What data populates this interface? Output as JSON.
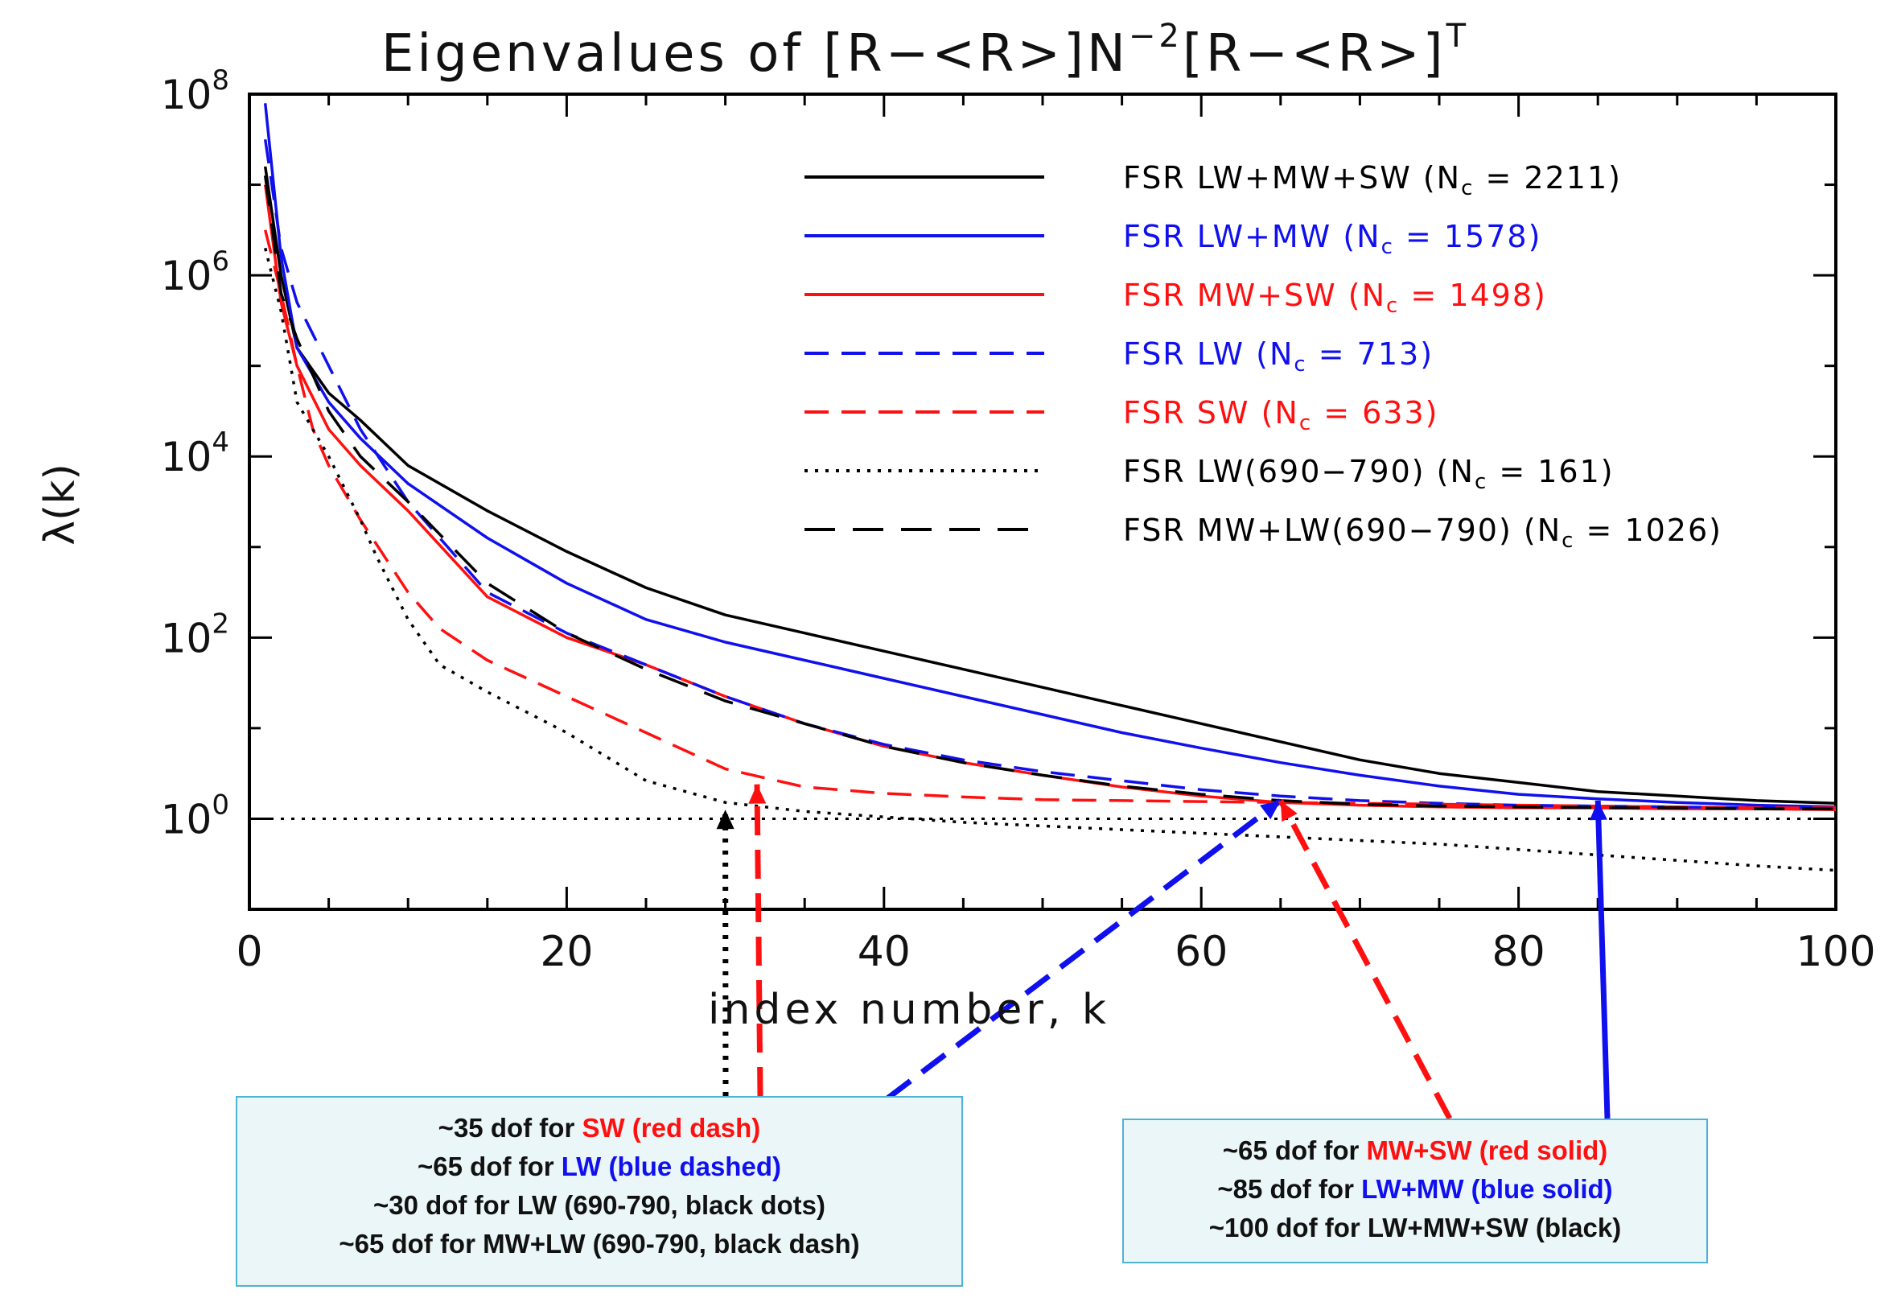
{
  "chart_data": {
    "type": "line",
    "title": "Eigenvalues of [R−<R>]N⁻²[R−<R>]ᵀ",
    "title_parts": {
      "main": "Eigenvalues of [R−<R>]N",
      "sup1": "−2",
      "mid": "[R−<R>]",
      "sup2": "T"
    },
    "xlabel": "index number, k",
    "ylabel": "λ(k)",
    "xlim": [
      0,
      100
    ],
    "ylim_log10": [
      -1,
      8
    ],
    "y_scale": "log",
    "x_ticks": [
      "0",
      "20",
      "40",
      "60",
      "80",
      "100"
    ],
    "y_ticks": [
      {
        "base": "10",
        "exp": "8"
      },
      {
        "base": "10",
        "exp": "6"
      },
      {
        "base": "10",
        "exp": "4"
      },
      {
        "base": "10",
        "exp": "2"
      },
      {
        "base": "10",
        "exp": "0"
      }
    ],
    "legend_position": "top-right",
    "reference_line": {
      "y": 1,
      "style": "dotted",
      "color": "#000000"
    },
    "series": [
      {
        "name": "FSR LW+MW+SW (Nᴄ = 2211)",
        "label_main": "FSR LW+MW+SW (N",
        "label_sub": "c",
        "label_tail": " = 2211)",
        "color": "#000000",
        "dash": "solid",
        "x": [
          1,
          2,
          3,
          5,
          7,
          10,
          15,
          20,
          25,
          30,
          35,
          40,
          45,
          50,
          55,
          60,
          65,
          70,
          75,
          80,
          85,
          90,
          95,
          100
        ],
        "log10y": [
          7.2,
          6.0,
          5.2,
          4.7,
          4.4,
          3.9,
          3.4,
          2.95,
          2.55,
          2.25,
          2.05,
          1.85,
          1.65,
          1.45,
          1.25,
          1.05,
          0.85,
          0.65,
          0.5,
          0.4,
          0.3,
          0.25,
          0.2,
          0.17
        ]
      },
      {
        "name": "FSR LW+MW (Nᴄ = 1578)",
        "label_main": "FSR LW+MW (N",
        "label_sub": "c",
        "label_tail": " = 1578)",
        "color": "#1010ee",
        "dash": "solid",
        "x": [
          1,
          2,
          3,
          5,
          7,
          10,
          15,
          20,
          25,
          30,
          35,
          40,
          45,
          50,
          55,
          60,
          65,
          70,
          75,
          80,
          85,
          90,
          95,
          100
        ],
        "log10y": [
          7.9,
          6.2,
          5.2,
          4.6,
          4.2,
          3.7,
          3.1,
          2.6,
          2.2,
          1.95,
          1.75,
          1.55,
          1.35,
          1.15,
          0.95,
          0.78,
          0.62,
          0.48,
          0.36,
          0.27,
          0.22,
          0.18,
          0.15,
          0.13
        ]
      },
      {
        "name": "FSR MW+SW (Nᴄ = 1498)",
        "label_main": "FSR MW+SW (N",
        "label_sub": "c",
        "label_tail": " = 1498)",
        "color": "#ff1010",
        "dash": "solid",
        "x": [
          1,
          2,
          3,
          5,
          7,
          10,
          15,
          20,
          25,
          30,
          35,
          40,
          45,
          50,
          55,
          60,
          65,
          70,
          75,
          80,
          85,
          90,
          95,
          100
        ],
        "log10y": [
          7.0,
          5.7,
          5.0,
          4.3,
          3.9,
          3.4,
          2.45,
          2.0,
          1.7,
          1.35,
          1.05,
          0.8,
          0.62,
          0.48,
          0.35,
          0.25,
          0.18,
          0.15,
          0.13,
          0.12,
          0.12,
          0.11,
          0.11,
          0.1
        ]
      },
      {
        "name": "FSR LW (Nᴄ = 713)",
        "label_main": "FSR LW (N",
        "label_sub": "c",
        "label_tail": " = 713)",
        "color": "#1010ee",
        "dash": "dashed",
        "x": [
          1,
          2,
          3,
          5,
          7,
          10,
          15,
          20,
          25,
          30,
          35,
          40,
          45,
          50,
          55,
          60,
          65,
          70,
          75,
          80,
          85,
          90,
          95,
          100
        ],
        "log10y": [
          7.5,
          6.3,
          5.7,
          5.0,
          4.3,
          3.5,
          2.5,
          2.05,
          1.7,
          1.35,
          1.05,
          0.82,
          0.65,
          0.52,
          0.42,
          0.32,
          0.25,
          0.2,
          0.17,
          0.15,
          0.14,
          0.13,
          0.12,
          0.12
        ]
      },
      {
        "name": "FSR SW (Nᴄ = 633)",
        "label_main": "FSR SW (N",
        "label_sub": "c",
        "label_tail": " = 633)",
        "color": "#ff1010",
        "dash": "dashed",
        "x": [
          1,
          2,
          3,
          4,
          5,
          7,
          10,
          12,
          15,
          20,
          25,
          30,
          35,
          40,
          45,
          50,
          55,
          60,
          65,
          70,
          75,
          80,
          85,
          90,
          95,
          100
        ],
        "log10y": [
          6.5,
          5.8,
          5.0,
          4.3,
          3.9,
          3.3,
          2.5,
          2.1,
          1.75,
          1.35,
          0.95,
          0.55,
          0.35,
          0.28,
          0.24,
          0.21,
          0.2,
          0.19,
          0.18,
          0.17,
          0.16,
          0.15,
          0.14,
          0.13,
          0.12,
          0.12
        ]
      },
      {
        "name": "FSR LW(690−790) (Nᴄ = 161)",
        "label_main": "FSR LW(690−790) (N",
        "label_sub": "c",
        "label_tail": " = 161)",
        "color": "#000000",
        "dash": "dotted",
        "x": [
          1,
          2,
          3,
          5,
          7,
          8,
          10,
          12,
          15,
          20,
          25,
          30,
          35,
          40,
          45,
          50,
          55,
          60,
          65,
          70,
          75,
          80,
          85,
          90,
          95,
          100
        ],
        "log10y": [
          6.3,
          5.6,
          4.6,
          4.0,
          3.3,
          2.9,
          2.2,
          1.7,
          1.4,
          0.95,
          0.42,
          0.18,
          0.08,
          0.02,
          -0.04,
          -0.08,
          -0.12,
          -0.16,
          -0.2,
          -0.24,
          -0.28,
          -0.34,
          -0.4,
          -0.46,
          -0.52,
          -0.57
        ]
      },
      {
        "name": "FSR MW+LW(690−790) (Nᴄ = 1026)",
        "label_main": "FSR MW+LW(690−790) (N",
        "label_sub": "c",
        "label_tail": " = 1026)",
        "color": "#000000",
        "dash": "longdash",
        "x": [
          1,
          2,
          3,
          5,
          7,
          10,
          15,
          20,
          25,
          30,
          35,
          40,
          45,
          50,
          55,
          60,
          65,
          70,
          75,
          80,
          85,
          90,
          95,
          100
        ],
        "log10y": [
          7.1,
          5.8,
          5.3,
          4.5,
          4.0,
          3.5,
          2.6,
          2.05,
          1.65,
          1.3,
          1.05,
          0.8,
          0.62,
          0.48,
          0.36,
          0.27,
          0.2,
          0.16,
          0.14,
          0.13,
          0.12,
          0.12,
          0.11,
          0.11
        ]
      }
    ],
    "annotation_arrows": [
      {
        "color": "#000000",
        "style": "dotted",
        "target_x": 30,
        "target_log10y": 0.1
      },
      {
        "color": "#ff1010",
        "style": "dashed",
        "target_x": 32,
        "target_log10y": 0.38
      },
      {
        "color": "#1010ee",
        "style": "dashed",
        "target_x": 65,
        "target_log10y": 0.2
      },
      {
        "color": "#ff1010",
        "style": "dashed",
        "target_x": 65,
        "target_log10y": 0.2
      },
      {
        "color": "#1010ee",
        "style": "solid",
        "target_x": 85,
        "target_log10y": 0.2
      }
    ]
  },
  "notes": {
    "left": [
      {
        "prefix": "~35 dof for ",
        "highlight": "SW (red dash)",
        "color": "#ff1010"
      },
      {
        "prefix": "~65 dof for ",
        "highlight": "LW (blue dashed)",
        "color": "#1010ee"
      },
      {
        "prefix": "~30 dof for LW (690-790, black dots)",
        "highlight": "",
        "color": "#000000"
      },
      {
        "prefix": "~65 dof for MW+LW (690-790, black dash)",
        "highlight": "",
        "color": "#000000"
      }
    ],
    "right": [
      {
        "prefix": "~65 dof for ",
        "highlight": "MW+SW (red solid)",
        "color": "#ff1010"
      },
      {
        "prefix": "~85 dof for ",
        "highlight": "LW+MW (blue solid)",
        "color": "#1010ee"
      },
      {
        "prefix": "~100 dof for LW+MW+SW (black)",
        "highlight": "",
        "color": "#000000"
      }
    ]
  }
}
